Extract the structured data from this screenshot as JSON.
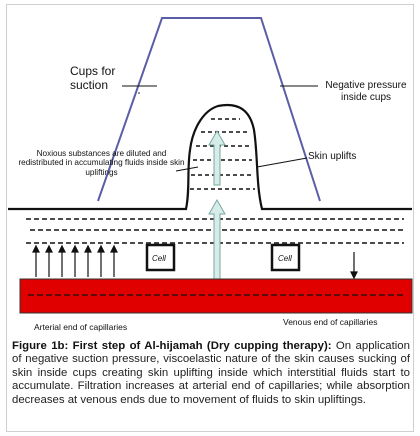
{
  "labels": {
    "cups_for_suction": "Cups for suction",
    "negative_pressure": "Negative pressure inside cups",
    "noxious": "Noxious substances are diluted and redistributed in accumulating fluids inside skin upliftings",
    "skin_uplifts": "Skin uplifts",
    "cell": "Cell",
    "arterial_end": "Arterial end of capillaries",
    "venous_end": "Venous end of capillaries"
  },
  "caption": {
    "heading": "Figure 1b: First step of Al-hijamah (Dry cupping therapy):",
    "body": " On application of negative suction pressure, viscoelastic nature of the skin causes sucking of skin inside cups creating skin uplifting inside which interstitial fluids start to accumulate. Filtration increases at arterial end of capillaries; while absorption decreases at venous ends due to movement of fluids to skin upliftings."
  },
  "colors": {
    "cup_outline": "#5b5ea6",
    "capillary_fill": "#e00000",
    "arrow_fill": "#d6ece8",
    "arrow_stroke": "#7aa9a2"
  }
}
